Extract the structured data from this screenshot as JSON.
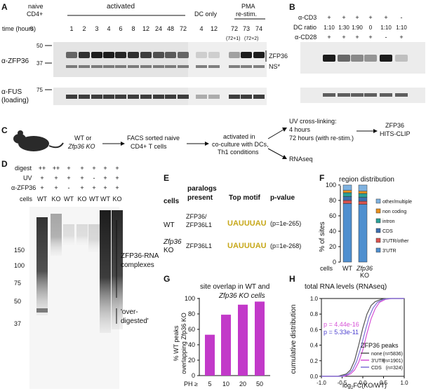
{
  "panelA": {
    "letter": "A",
    "naive": "naive",
    "cd4": "CD4+",
    "activated": "activated",
    "dc_only": "DC only",
    "pma1": "PMA",
    "pma2": "re-stim.",
    "time_label": "time (hours)",
    "times": [
      "0",
      "1",
      "2",
      "3",
      "4",
      "6",
      "8",
      "12",
      "24",
      "48",
      "72",
      "4",
      "12",
      "72",
      "73",
      "74"
    ],
    "pma_sub1": "(72+1)",
    "pma_sub2": "(72+2)",
    "ab_top": "α-ZFP36",
    "ab_bottom1": "α-FUS",
    "ab_bottom2": "(loading)",
    "mw_top": [
      "50",
      "37"
    ],
    "mw_bottom": "75",
    "band_zfp36": "ZFP36",
    "band_ns": "NS*"
  },
  "panelB": {
    "letter": "B",
    "row_cd3": "α-CD3",
    "row_dc": "DC ratio",
    "row_cd28": "α-CD28",
    "cd3": [
      "+",
      "+",
      "+",
      "+",
      "+",
      "-"
    ],
    "dc": [
      "1:10",
      "1:30",
      "1:90",
      "0",
      "1:10",
      "1:10"
    ],
    "cd28": [
      "+",
      "+",
      "+",
      "+",
      "-",
      "+"
    ]
  },
  "panelC": {
    "letter": "C",
    "wt_or": "WT or",
    "ko": "Zfp36 KO",
    "facs1": "FACS sorted naive",
    "facs2": "CD4+ T cells",
    "act1": "activated in",
    "act2": "co-culture with DCs,",
    "act3": "Th1 conditions",
    "uv1": "UV cross-linking:",
    "uv2": "4 hours",
    "uv3": "72 hours (with re-stim.)",
    "clip1": "ZFP36",
    "clip2": "HITS-CLIP",
    "rnaseq": "RNAseq"
  },
  "panelD": {
    "letter": "D",
    "row_digest": "digest",
    "row_uv": "UV",
    "row_ab": "α-ZFP36",
    "row_cells": "cells",
    "digest": [
      "++",
      "++",
      "+",
      "+",
      "+",
      "+",
      "+"
    ],
    "uv": [
      "+",
      "+",
      "+",
      "+",
      "-",
      "+",
      "+"
    ],
    "ab": [
      "+",
      "+",
      "-",
      "+",
      "+",
      "+",
      "+"
    ],
    "cells": [
      "WT",
      "KO",
      "WT",
      "KO",
      "WT",
      "WT",
      "KO"
    ],
    "mw": [
      "150",
      "100",
      "75",
      "50",
      "37"
    ],
    "complex1": "ZFP36-RNA",
    "complex2": "complexes",
    "over1": "'over-",
    "over2": "digested'"
  },
  "panelE": {
    "letter": "E",
    "h_cells": "cells",
    "h_par1": "paralogs",
    "h_par2": "present",
    "h_motif": "Top motif",
    "h_p": "p-value",
    "rows": [
      {
        "cell": "WT",
        "cell2": "",
        "par1": "ZFP36/",
        "par2": "ZFP36L1",
        "motif": "UAUUUAU",
        "p": "(p=1e-265)"
      },
      {
        "cell": "Zfp36",
        "cell2": "KO",
        "par1": "ZFP36L1",
        "par2": "",
        "motif": "UAUUUAU",
        "p": "(p=1e-268)"
      }
    ]
  },
  "panelF": {
    "letter": "F",
    "title": "region distribution",
    "ylabel": "% of sites",
    "xlabel": "cells",
    "ticks": [
      "0",
      "20",
      "40",
      "60",
      "80",
      "100"
    ],
    "bars": [
      "WT",
      "Zfp36 KO"
    ],
    "legend": [
      "other/multiple",
      "non coding",
      "intron",
      "CDS",
      "3'UTR/other",
      "3'UTR"
    ],
    "colors": {
      "3'UTR": "#4f8fcf",
      "3'UTR/other": "#d9534f",
      "CDS": "#3c6fb0",
      "intron": "#2aa198",
      "non coding": "#e8901e",
      "other/multiple": "#7fb2e0"
    }
  },
  "panelG": {
    "letter": "G",
    "title1": "site overlap in WT and",
    "title2": "Zfp36 KO cells",
    "ylabel1": "% WT peaks",
    "ylabel2": "overlapping Zfp36 KO",
    "xprefix": "PH ≥",
    "ticks": [
      "0",
      "20",
      "40",
      "60",
      "80",
      "100"
    ],
    "color": "#c239c9"
  },
  "panelH": {
    "letter": "H",
    "title": "total RNA levels (RNAseq)",
    "ylabel": "cumulative distribution",
    "xlabel": "log2FC(KO/WT)",
    "xticks": [
      "-1.0",
      "-0.5",
      "0.0",
      "0.5",
      "1.0"
    ],
    "yticks": [
      "0.0",
      "0.2",
      "0.4",
      "0.6",
      "0.8",
      "1.0"
    ],
    "p1": "p = 4.44e-16",
    "p2": "p = 5.33e-11",
    "legend_title": "ZFP36 peaks",
    "legend": [
      {
        "name": "none",
        "n": "(n=5836)",
        "color": "#555555"
      },
      {
        "name": "3'UTR",
        "n": "(n=1901)",
        "color": "#d64fd6"
      },
      {
        "name": "CDS",
        "n": "(n=324)",
        "color": "#7d6fd6"
      }
    ]
  },
  "chart_data": [
    {
      "type": "bar",
      "title": "region distribution",
      "xlabel": "cells",
      "ylabel": "% of sites",
      "ylim": [
        0,
        100
      ],
      "categories": [
        "WT",
        "Zfp36 KO"
      ],
      "series": [
        {
          "name": "3'UTR",
          "values": [
            76,
            75
          ]
        },
        {
          "name": "3'UTR/other",
          "values": [
            4,
            4
          ]
        },
        {
          "name": "CDS",
          "values": [
            5,
            5
          ]
        },
        {
          "name": "intron",
          "values": [
            5,
            5
          ]
        },
        {
          "name": "non coding",
          "values": [
            3,
            3
          ]
        },
        {
          "name": "other/multiple",
          "values": [
            7,
            8
          ]
        }
      ]
    },
    {
      "type": "bar",
      "title": "site overlap in WT and Zfp36 KO cells",
      "ylabel": "% WT peaks overlapping Zfp36 KO",
      "categories": [
        "5",
        "10",
        "20",
        "50"
      ],
      "values": [
        53,
        79,
        92,
        96
      ],
      "ylim": [
        0,
        100
      ]
    },
    {
      "type": "line",
      "title": "total RNA levels (RNAseq)",
      "xlabel": "log2FC(KO/WT)",
      "ylabel": "cumulative distribution",
      "xlim": [
        -1.0,
        1.0
      ],
      "ylim": [
        0,
        1.0
      ],
      "series": [
        {
          "name": "none",
          "x": [
            -0.6,
            -0.4,
            -0.3,
            -0.2,
            -0.1,
            0.0,
            0.1,
            0.2,
            0.3,
            0.45,
            0.6
          ],
          "y": [
            0,
            0.03,
            0.08,
            0.2,
            0.4,
            0.62,
            0.8,
            0.91,
            0.96,
            0.99,
            1.0
          ]
        },
        {
          "name": "3'UTR",
          "x": [
            -0.45,
            -0.3,
            -0.2,
            -0.1,
            0.0,
            0.1,
            0.2,
            0.3,
            0.4,
            0.55,
            0.7
          ],
          "y": [
            0,
            0.03,
            0.08,
            0.18,
            0.34,
            0.55,
            0.74,
            0.87,
            0.95,
            0.99,
            1.0
          ]
        },
        {
          "name": "CDS",
          "x": [
            -0.5,
            -0.35,
            -0.25,
            -0.15,
            -0.05,
            0.05,
            0.15,
            0.25,
            0.35,
            0.5,
            0.65
          ],
          "y": [
            0,
            0.03,
            0.08,
            0.19,
            0.36,
            0.57,
            0.76,
            0.88,
            0.95,
            0.99,
            1.0
          ]
        }
      ]
    }
  ]
}
